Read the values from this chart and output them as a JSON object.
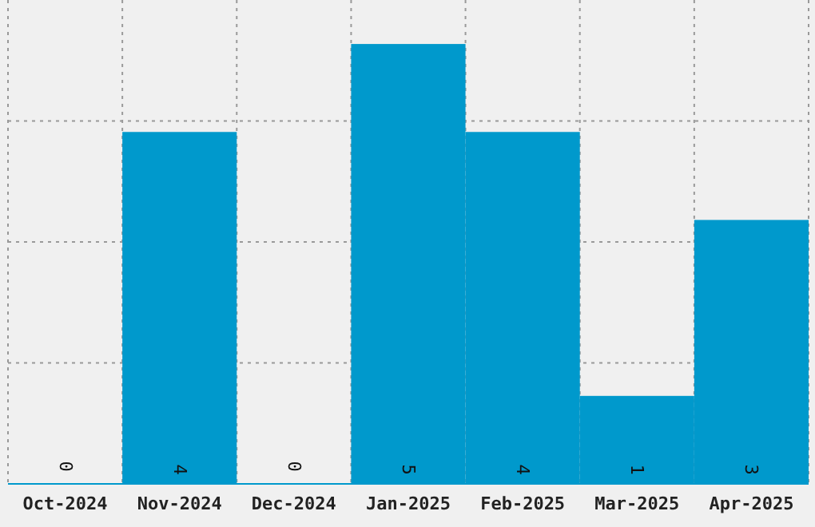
{
  "chart_data": {
    "type": "bar",
    "categories": [
      "Oct-2024",
      "Nov-2024",
      "Dec-2024",
      "Jan-2025",
      "Feb-2025",
      "Mar-2025",
      "Apr-2025"
    ],
    "values": [
      0,
      4,
      0,
      5,
      4,
      1,
      3
    ],
    "color": "#0099cc",
    "ylim": [
      0,
      5.5
    ],
    "yticks": [
      {
        "value": 1.375,
        "label": null
      },
      {
        "value": 2.75,
        "label": null
      },
      {
        "value": 4.125,
        "label": null
      }
    ],
    "grid": true,
    "tick_labels": "x",
    "data_labels": true
  }
}
